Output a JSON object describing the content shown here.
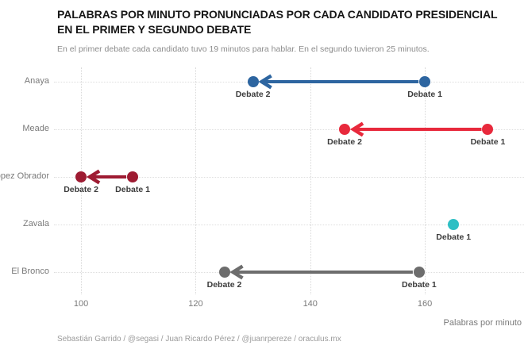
{
  "title_line1": "PALABRAS POR MINUTO PRONUNCIADAS POR CADA CANDIDATO PRESIDENCIAL",
  "title_line2": "EN EL PRIMER Y SEGUNDO DEBATE",
  "subtitle": "En el primer debate cada candidato tuvo 19 minutos para hablar. En el segundo tuvieron 25 minutos.",
  "footer": "Sebastián Garrido / @segasi / Juan Ricardo Pérez / @juanrpereze / oraculus.mx",
  "chart_data": {
    "type": "scatter",
    "variant": "dumbbell-arrow",
    "title": "Palabras por minuto pronunciadas por cada candidato presidencial en el primer y segundo debate",
    "xlabel": "Palabras por minuto",
    "ylabel": "",
    "x_ticks": [
      100,
      120,
      140,
      160
    ],
    "xlim": [
      95,
      178
    ],
    "grid": "dotted",
    "point_labels": {
      "debate1": "Debate 1",
      "debate2": "Debate 2"
    },
    "series": [
      {
        "name": "Anaya",
        "color": "#2d65a0",
        "debate1": 160,
        "debate2": 130
      },
      {
        "name": "Meade",
        "color": "#e8293c",
        "debate1": 171,
        "debate2": 146
      },
      {
        "name": "López Obrador",
        "color": "#9e1b32",
        "debate1": 109,
        "debate2": 100
      },
      {
        "name": "Zavala",
        "color": "#2ebfc4",
        "debate1": 165,
        "debate2": null
      },
      {
        "name": "El Bronco",
        "color": "#6d6d6d",
        "debate1": 159,
        "debate2": 125
      }
    ]
  }
}
